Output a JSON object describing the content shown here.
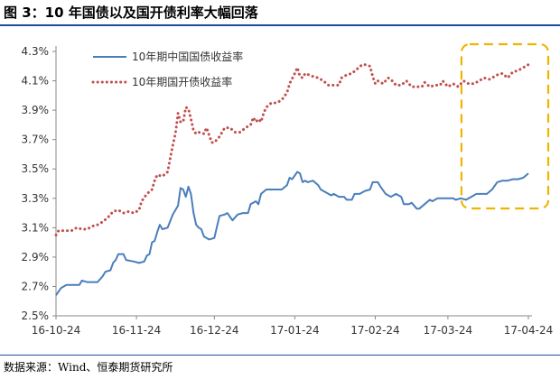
{
  "figure": {
    "title": "图 3：10 年国债以及国开债利率大幅回落",
    "source": "数据来源：Wind、恒泰期货研究所"
  },
  "chart_data": {
    "type": "line",
    "title": "10 年国债以及国开债利率大幅回落",
    "xlabel": "",
    "ylabel": "",
    "ylim": [
      2.5,
      4.3
    ],
    "yticks": [
      "2.5%",
      "2.7%",
      "2.9%",
      "3.1%",
      "3.3%",
      "3.5%",
      "3.7%",
      "3.9%",
      "4.1%",
      "4.3%"
    ],
    "xticks": [
      "16-10-24",
      "16-11-24",
      "16-12-24",
      "17-01-24",
      "17-02-24",
      "17-03-24",
      "17-04-24"
    ],
    "x_start": "2016-10-24",
    "x_end": "2017-04-24",
    "legend": "top-left",
    "grid": false,
    "highlight": "dashed-rounded-box",
    "highlight_color": "#f0b400",
    "series": [
      {
        "name": "10年期中国国债收益率",
        "style": "solid",
        "color": "#4a7ebb",
        "points": [
          [
            "2016-10-24",
            2.64
          ],
          [
            "2016-10-26",
            2.69
          ],
          [
            "2016-10-28",
            2.71
          ],
          [
            "2016-10-31",
            2.71
          ],
          [
            "2016-11-02",
            2.71
          ],
          [
            "2016-11-03",
            2.74
          ],
          [
            "2016-11-05",
            2.73
          ],
          [
            "2016-11-09",
            2.73
          ],
          [
            "2016-11-11",
            2.77
          ],
          [
            "2016-11-12",
            2.8
          ],
          [
            "2016-11-14",
            2.81
          ],
          [
            "2016-11-15",
            2.86
          ],
          [
            "2016-11-16",
            2.88
          ],
          [
            "2016-11-17",
            2.92
          ],
          [
            "2016-11-19",
            2.92
          ],
          [
            "2016-11-20",
            2.88
          ],
          [
            "2016-11-23",
            2.87
          ],
          [
            "2016-11-25",
            2.86
          ],
          [
            "2016-11-27",
            2.87
          ],
          [
            "2016-11-28",
            2.91
          ],
          [
            "2016-11-29",
            2.92
          ],
          [
            "2016-11-30",
            3.0
          ],
          [
            "2016-12-01",
            3.01
          ],
          [
            "2016-12-02",
            3.07
          ],
          [
            "2016-12-03",
            3.12
          ],
          [
            "2016-12-04",
            3.09
          ],
          [
            "2016-12-06",
            3.1
          ],
          [
            "2016-12-08",
            3.19
          ],
          [
            "2016-12-10",
            3.25
          ],
          [
            "2016-12-11",
            3.37
          ],
          [
            "2016-12-12",
            3.36
          ],
          [
            "2016-12-13",
            3.31
          ],
          [
            "2016-12-14",
            3.38
          ],
          [
            "2016-12-15",
            3.33
          ],
          [
            "2016-12-16",
            3.2
          ],
          [
            "2016-12-17",
            3.12
          ],
          [
            "2016-12-18",
            3.1
          ],
          [
            "2016-12-19",
            3.09
          ],
          [
            "2016-12-20",
            3.04
          ],
          [
            "2016-12-22",
            3.02
          ],
          [
            "2016-12-24",
            3.03
          ],
          [
            "2016-12-26",
            3.18
          ],
          [
            "2016-12-28",
            3.19
          ],
          [
            "2016-12-29",
            3.2
          ],
          [
            "2016-12-31",
            3.15
          ],
          [
            "2017-01-02",
            3.19
          ],
          [
            "2017-01-04",
            3.2
          ],
          [
            "2017-01-06",
            3.2
          ],
          [
            "2017-01-07",
            3.26
          ],
          [
            "2017-01-09",
            3.28
          ],
          [
            "2017-01-10",
            3.26
          ],
          [
            "2017-01-11",
            3.33
          ],
          [
            "2017-01-13",
            3.36
          ],
          [
            "2017-01-15",
            3.36
          ],
          [
            "2017-01-17",
            3.36
          ],
          [
            "2017-01-19",
            3.36
          ],
          [
            "2017-01-21",
            3.39
          ],
          [
            "2017-01-22",
            3.44
          ],
          [
            "2017-01-23",
            3.43
          ],
          [
            "2017-01-25",
            3.48
          ],
          [
            "2017-01-26",
            3.47
          ],
          [
            "2017-01-27",
            3.41
          ],
          [
            "2017-01-28",
            3.42
          ],
          [
            "2017-01-29",
            3.41
          ],
          [
            "2017-01-31",
            3.42
          ],
          [
            "2017-02-02",
            3.39
          ],
          [
            "2017-02-03",
            3.36
          ],
          [
            "2017-02-05",
            3.34
          ],
          [
            "2017-02-07",
            3.32
          ],
          [
            "2017-02-08",
            3.33
          ],
          [
            "2017-02-10",
            3.31
          ],
          [
            "2017-02-12",
            3.31
          ],
          [
            "2017-02-13",
            3.29
          ],
          [
            "2017-02-15",
            3.29
          ],
          [
            "2017-02-16",
            3.33
          ],
          [
            "2017-02-18",
            3.33
          ],
          [
            "2017-02-20",
            3.35
          ],
          [
            "2017-02-22",
            3.36
          ],
          [
            "2017-02-23",
            3.41
          ],
          [
            "2017-02-25",
            3.41
          ],
          [
            "2017-02-26",
            3.38
          ],
          [
            "2017-02-28",
            3.33
          ],
          [
            "2017-03-02",
            3.31
          ],
          [
            "2017-03-04",
            3.33
          ],
          [
            "2017-03-06",
            3.31
          ],
          [
            "2017-03-07",
            3.26
          ],
          [
            "2017-03-09",
            3.26
          ],
          [
            "2017-03-10",
            3.27
          ],
          [
            "2017-03-12",
            3.23
          ],
          [
            "2017-03-13",
            3.23
          ],
          [
            "2017-03-15",
            3.26
          ],
          [
            "2017-03-17",
            3.29
          ],
          [
            "2017-03-18",
            3.28
          ],
          [
            "2017-03-20",
            3.3
          ],
          [
            "2017-03-22",
            3.3
          ],
          [
            "2017-03-24",
            3.3
          ],
          [
            "2017-03-26",
            3.3
          ],
          [
            "2017-03-27",
            3.29
          ],
          [
            "2017-03-29",
            3.3
          ],
          [
            "2017-03-31",
            3.29
          ],
          [
            "2017-04-02",
            3.31
          ],
          [
            "2017-04-04",
            3.33
          ],
          [
            "2017-04-06",
            3.33
          ],
          [
            "2017-04-08",
            3.33
          ],
          [
            "2017-04-10",
            3.36
          ],
          [
            "2017-04-12",
            3.41
          ],
          [
            "2017-04-14",
            3.42
          ],
          [
            "2017-04-16",
            3.42
          ],
          [
            "2017-04-18",
            3.43
          ],
          [
            "2017-04-20",
            3.43
          ],
          [
            "2017-04-22",
            3.44
          ],
          [
            "2017-04-24",
            3.47
          ]
        ]
      },
      {
        "name": "10年期国开债收益率",
        "style": "dotted",
        "color": "#c0504d",
        "points": [
          [
            "2016-10-24",
            3.05
          ],
          [
            "2016-10-25",
            3.08
          ],
          [
            "2016-10-27",
            3.08
          ],
          [
            "2016-10-30",
            3.08
          ],
          [
            "2016-11-01",
            3.1
          ],
          [
            "2016-11-03",
            3.09
          ],
          [
            "2016-11-05",
            3.09
          ],
          [
            "2016-11-07",
            3.11
          ],
          [
            "2016-11-09",
            3.12
          ],
          [
            "2016-11-11",
            3.14
          ],
          [
            "2016-11-13",
            3.17
          ],
          [
            "2016-11-15",
            3.21
          ],
          [
            "2016-11-17",
            3.22
          ],
          [
            "2016-11-19",
            3.2
          ],
          [
            "2016-11-21",
            3.21
          ],
          [
            "2016-11-23",
            3.2
          ],
          [
            "2016-11-25",
            3.22
          ],
          [
            "2016-11-26",
            3.28
          ],
          [
            "2016-11-28",
            3.33
          ],
          [
            "2016-11-30",
            3.36
          ],
          [
            "2016-12-01",
            3.42
          ],
          [
            "2016-12-02",
            3.46
          ],
          [
            "2016-12-04",
            3.45
          ],
          [
            "2016-12-06",
            3.48
          ],
          [
            "2016-12-07",
            3.57
          ],
          [
            "2016-12-08",
            3.66
          ],
          [
            "2016-12-09",
            3.74
          ],
          [
            "2016-12-10",
            3.88
          ],
          [
            "2016-12-11",
            3.82
          ],
          [
            "2016-12-12",
            3.82
          ],
          [
            "2016-12-13",
            3.92
          ],
          [
            "2016-12-14",
            3.91
          ],
          [
            "2016-12-15",
            3.84
          ],
          [
            "2016-12-16",
            3.76
          ],
          [
            "2016-12-17",
            3.74
          ],
          [
            "2016-12-18",
            3.75
          ],
          [
            "2016-12-20",
            3.74
          ],
          [
            "2016-12-21",
            3.78
          ],
          [
            "2016-12-23",
            3.68
          ],
          [
            "2016-12-24",
            3.68
          ],
          [
            "2016-12-26",
            3.72
          ],
          [
            "2016-12-28",
            3.78
          ],
          [
            "2016-12-30",
            3.78
          ],
          [
            "2017-01-01",
            3.75
          ],
          [
            "2017-01-03",
            3.75
          ],
          [
            "2017-01-05",
            3.78
          ],
          [
            "2017-01-07",
            3.8
          ],
          [
            "2017-01-08",
            3.85
          ],
          [
            "2017-01-09",
            3.82
          ],
          [
            "2017-01-10",
            3.84
          ],
          [
            "2017-01-11",
            3.82
          ],
          [
            "2017-01-12",
            3.88
          ],
          [
            "2017-01-13",
            3.92
          ],
          [
            "2017-01-15",
            3.95
          ],
          [
            "2017-01-17",
            3.95
          ],
          [
            "2017-01-19",
            3.97
          ],
          [
            "2017-01-21",
            4.02
          ],
          [
            "2017-01-22",
            4.08
          ],
          [
            "2017-01-24",
            4.15
          ],
          [
            "2017-01-25",
            4.19
          ],
          [
            "2017-01-26",
            4.13
          ],
          [
            "2017-01-27",
            4.12
          ],
          [
            "2017-01-28",
            4.15
          ],
          [
            "2017-01-31",
            4.13
          ],
          [
            "2017-02-02",
            4.12
          ],
          [
            "2017-02-04",
            4.1
          ],
          [
            "2017-02-06",
            4.07
          ],
          [
            "2017-02-08",
            4.07
          ],
          [
            "2017-02-10",
            4.07
          ],
          [
            "2017-02-11",
            4.12
          ],
          [
            "2017-02-13",
            4.14
          ],
          [
            "2017-02-15",
            4.15
          ],
          [
            "2017-02-17",
            4.18
          ],
          [
            "2017-02-19",
            4.21
          ],
          [
            "2017-02-20",
            4.21
          ],
          [
            "2017-02-22",
            4.2
          ],
          [
            "2017-02-23",
            4.13
          ],
          [
            "2017-02-24",
            4.08
          ],
          [
            "2017-02-25",
            4.1
          ],
          [
            "2017-02-27",
            4.08
          ],
          [
            "2017-03-01",
            4.12
          ],
          [
            "2017-03-02",
            4.11
          ],
          [
            "2017-03-04",
            4.07
          ],
          [
            "2017-03-06",
            4.07
          ],
          [
            "2017-03-08",
            4.1
          ],
          [
            "2017-03-10",
            4.06
          ],
          [
            "2017-03-12",
            4.06
          ],
          [
            "2017-03-14",
            4.06
          ],
          [
            "2017-03-15",
            4.09
          ],
          [
            "2017-03-17",
            4.06
          ],
          [
            "2017-03-19",
            4.07
          ],
          [
            "2017-03-21",
            4.07
          ],
          [
            "2017-03-22",
            4.1
          ],
          [
            "2017-03-24",
            4.06
          ],
          [
            "2017-03-26",
            4.08
          ],
          [
            "2017-03-28",
            4.06
          ],
          [
            "2017-03-30",
            4.1
          ],
          [
            "2017-04-01",
            4.08
          ],
          [
            "2017-04-03",
            4.08
          ],
          [
            "2017-04-05",
            4.1
          ],
          [
            "2017-04-07",
            4.12
          ],
          [
            "2017-04-09",
            4.11
          ],
          [
            "2017-04-12",
            4.14
          ],
          [
            "2017-04-14",
            4.15
          ],
          [
            "2017-04-16",
            4.12
          ],
          [
            "2017-04-18",
            4.16
          ],
          [
            "2017-04-20",
            4.17
          ],
          [
            "2017-04-22",
            4.19
          ],
          [
            "2017-04-24",
            4.21
          ]
        ]
      }
    ]
  }
}
